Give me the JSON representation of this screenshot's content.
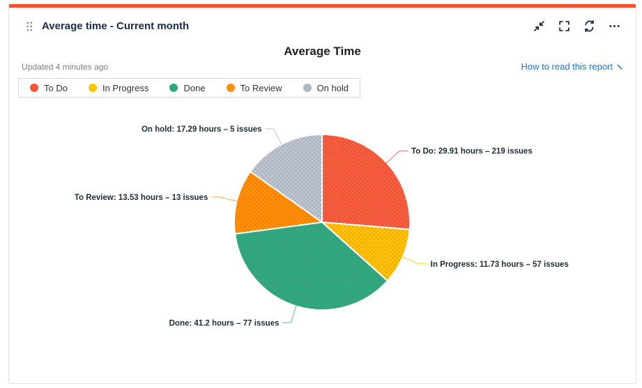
{
  "accent_color": "#f4502d",
  "header": {
    "title": "Average time - Current month",
    "actions": [
      "minimize",
      "fullscreen",
      "refresh",
      "more"
    ]
  },
  "meta": {
    "updated": "Updated 4 minutes ago",
    "help_link": "How to read this report"
  },
  "colors": {
    "title_navy": "#172b4d",
    "link_blue": "#1a73e8",
    "label_dark": "#1c2b3a"
  },
  "chart_data": {
    "type": "pie",
    "title": "Average Time",
    "start_angle_deg": 0,
    "clockwise": true,
    "legend_position": "top-left",
    "label_format": "{name}: {hours} hours – {issues} issues",
    "series": [
      {
        "name": "To Do",
        "hours": 29.91,
        "hours_label": "29.91",
        "issues": 219,
        "color": "#f4533c",
        "pattern": "dots",
        "pattern_color": "#ffb238"
      },
      {
        "name": "In Progress",
        "hours": 11.73,
        "hours_label": "11.73",
        "issues": 57,
        "color": "#ffc400",
        "pattern": "dots",
        "pattern_color": "#f4533c"
      },
      {
        "name": "Done",
        "hours": 41.2,
        "hours_label": "41.2",
        "issues": 77,
        "color": "#2ca97a",
        "pattern": "dots",
        "pattern_color": "#8678b5"
      },
      {
        "name": "To Review",
        "hours": 13.53,
        "hours_label": "13.53",
        "issues": 13,
        "color": "#ff9000",
        "pattern": "dots",
        "pattern_color": "#d84315"
      },
      {
        "name": "On hold",
        "hours": 17.29,
        "hours_label": "17.29",
        "issues": 5,
        "color": "#aeb6c2",
        "pattern": "crosshatch",
        "pattern_color": "#ffffff"
      }
    ]
  }
}
